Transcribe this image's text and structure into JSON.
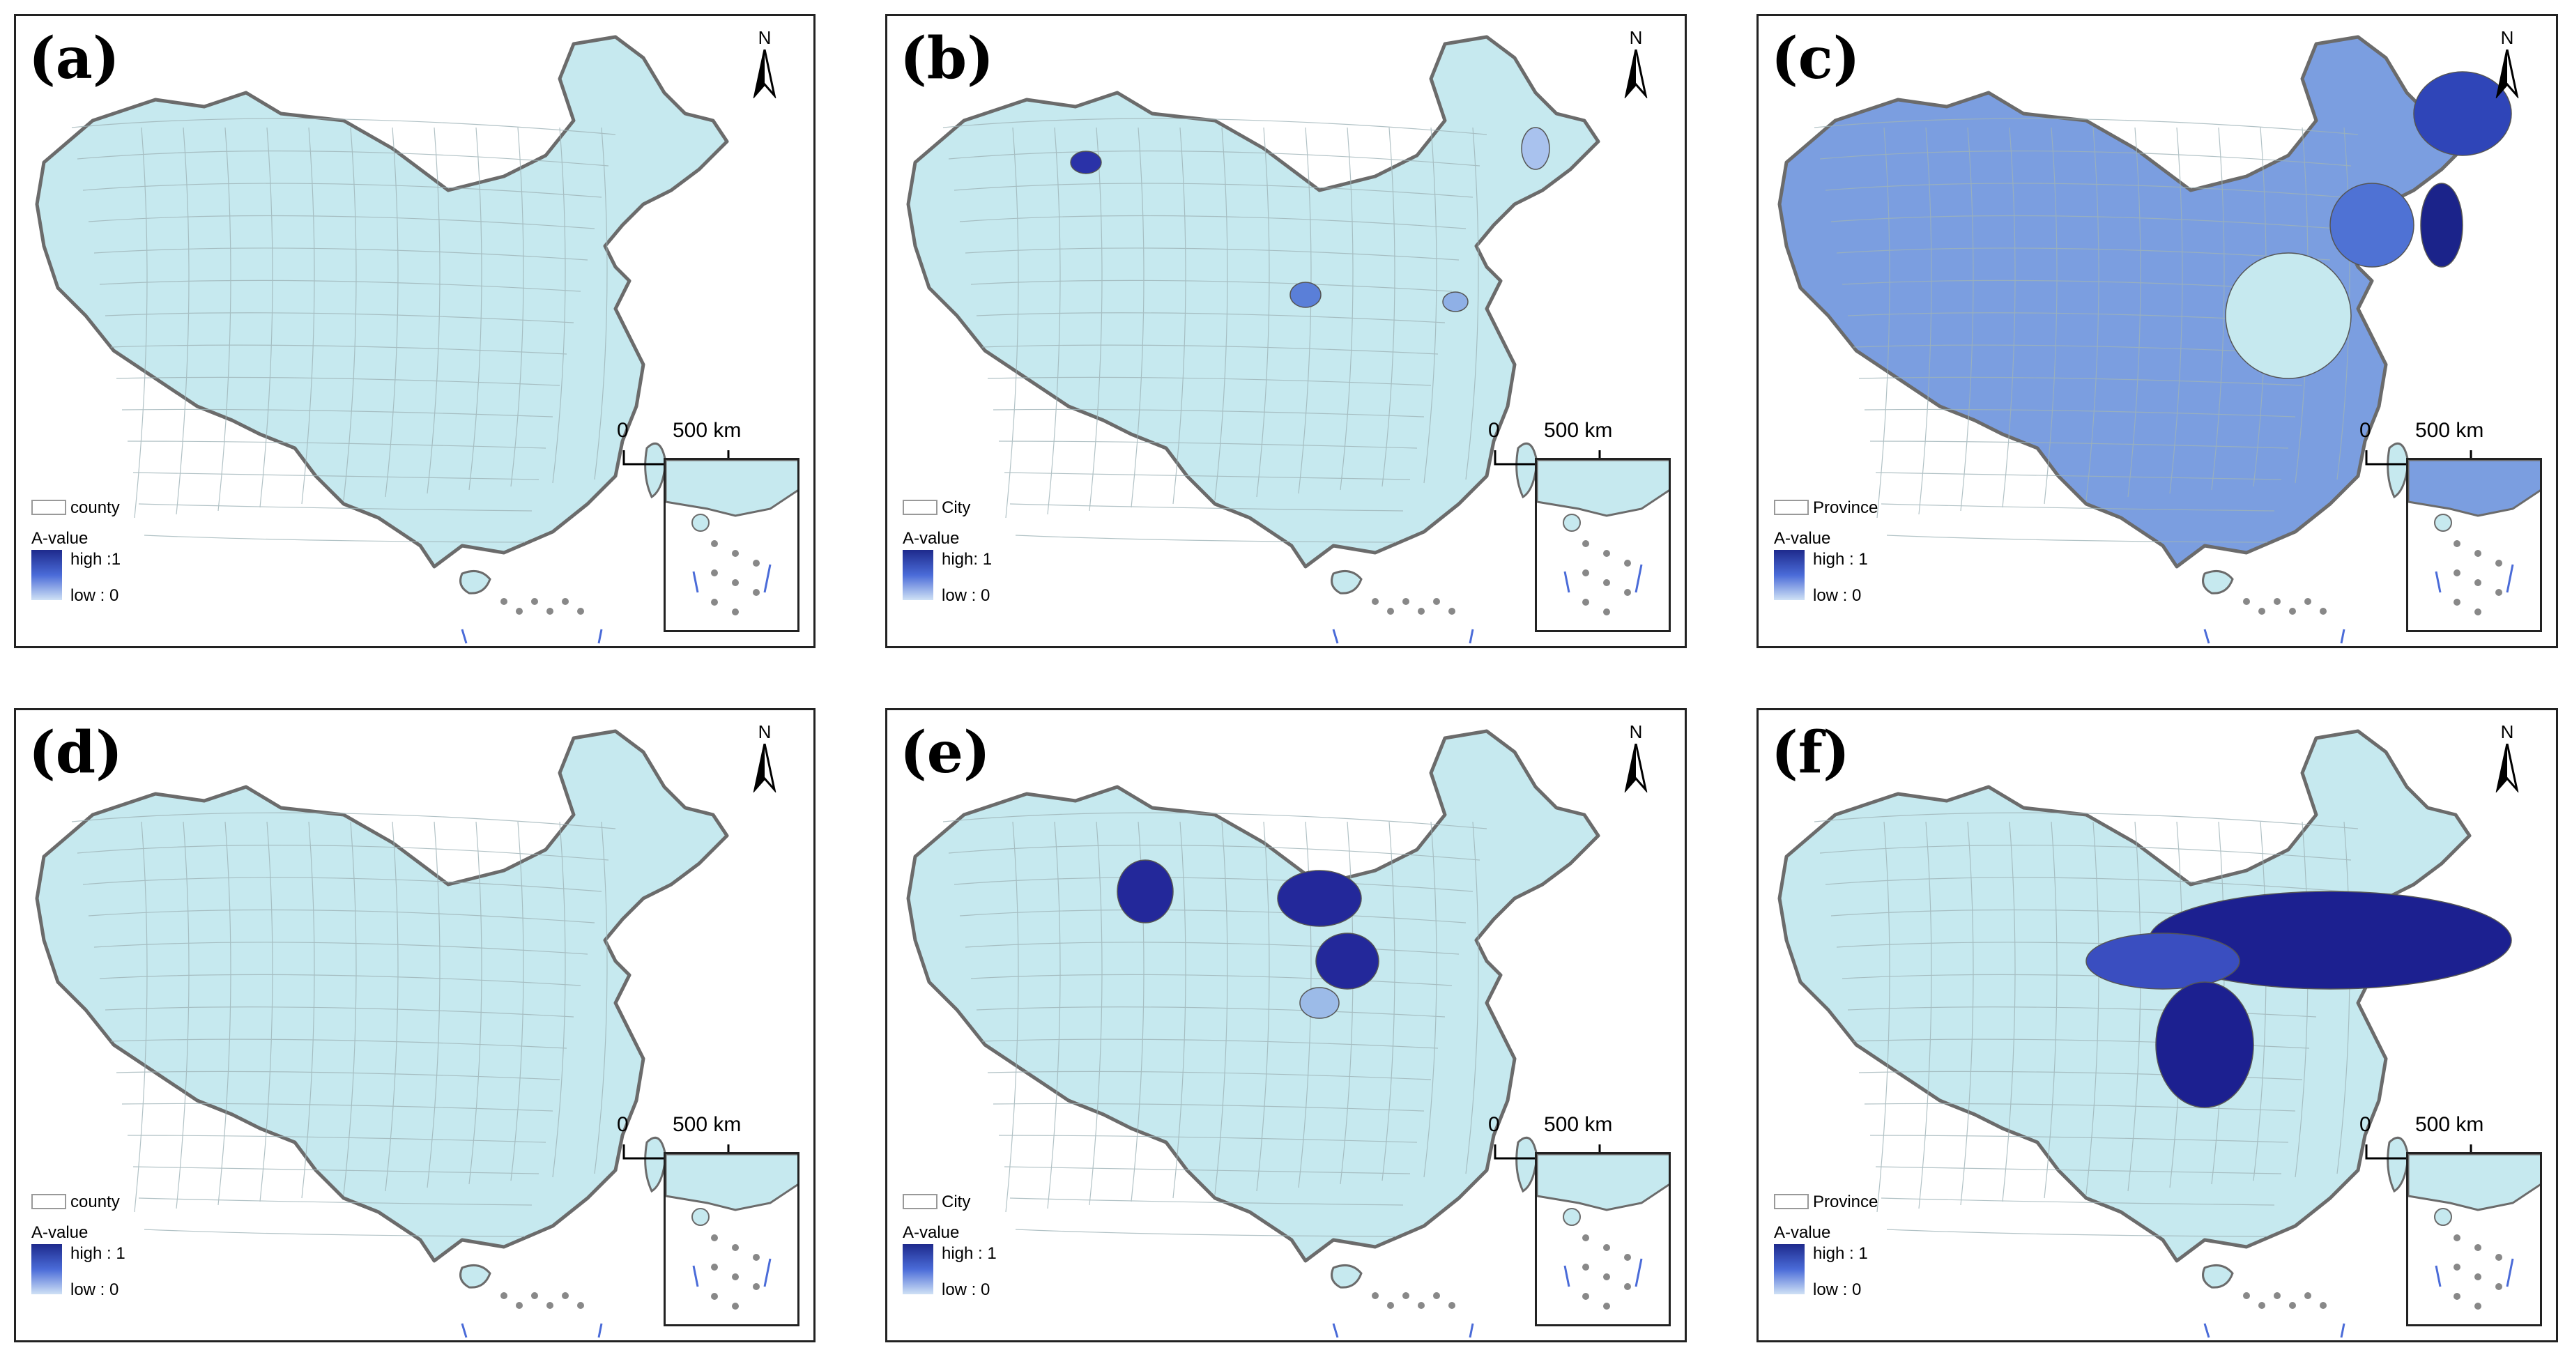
{
  "panels": [
    {
      "id": "a",
      "label": "(a)",
      "level_label": "county",
      "value_title": "A-value",
      "high": "high :1",
      "low": "low : 0",
      "scale_zero": "0",
      "scale_km": "500 km",
      "north": "N",
      "fill": "#c6e9ef",
      "highlight": []
    },
    {
      "id": "b",
      "label": "(b)",
      "level_label": "City",
      "value_title": "A-value",
      "high": "high: 1",
      "low": "low : 0",
      "scale_zero": "0",
      "scale_km": "500 km",
      "north": "N",
      "fill": "#c6e9ef",
      "highlight": [
        "#2a32a8",
        "#8fb0e6",
        "#5a7fd8",
        "#a9c2ee"
      ]
    },
    {
      "id": "c",
      "label": "(c)",
      "level_label": "Province",
      "value_title": "A-value",
      "high": "high : 1",
      "low": "low : 0",
      "scale_zero": "0",
      "scale_km": "500 km",
      "north": "N",
      "fill": "#7b9ee0",
      "highlight": [
        "#2f45b8",
        "#4f72d4",
        "#c6e9ef",
        "#1b238a"
      ]
    },
    {
      "id": "d",
      "label": "(d)",
      "level_label": "county",
      "value_title": "A-value",
      "high": "high : 1",
      "low": "low : 0",
      "scale_zero": "0",
      "scale_km": "500 km",
      "north": "N",
      "fill": "#c6e9ef",
      "highlight": []
    },
    {
      "id": "e",
      "label": "(e)",
      "level_label": "City",
      "value_title": "A-value",
      "high": "high : 1",
      "low": "low : 0",
      "scale_zero": "0",
      "scale_km": "500 km",
      "north": "N",
      "fill": "#c6e9ef",
      "highlight": [
        "#23289a",
        "#23289a",
        "#23289a",
        "#9cbbe8"
      ]
    },
    {
      "id": "f",
      "label": "(f)",
      "level_label": "Province",
      "value_title": "A-value",
      "high": "high : 1",
      "low": "low : 0",
      "scale_zero": "0",
      "scale_km": "500 km",
      "north": "N",
      "fill": "#c6e9ef",
      "highlight": [
        "#1c2090",
        "#3a4ec0",
        "#1c2090"
      ]
    }
  ],
  "colors": {
    "border": "#6b6b6b",
    "base": "#c6e9ef",
    "dark": "#1e2a8c"
  }
}
